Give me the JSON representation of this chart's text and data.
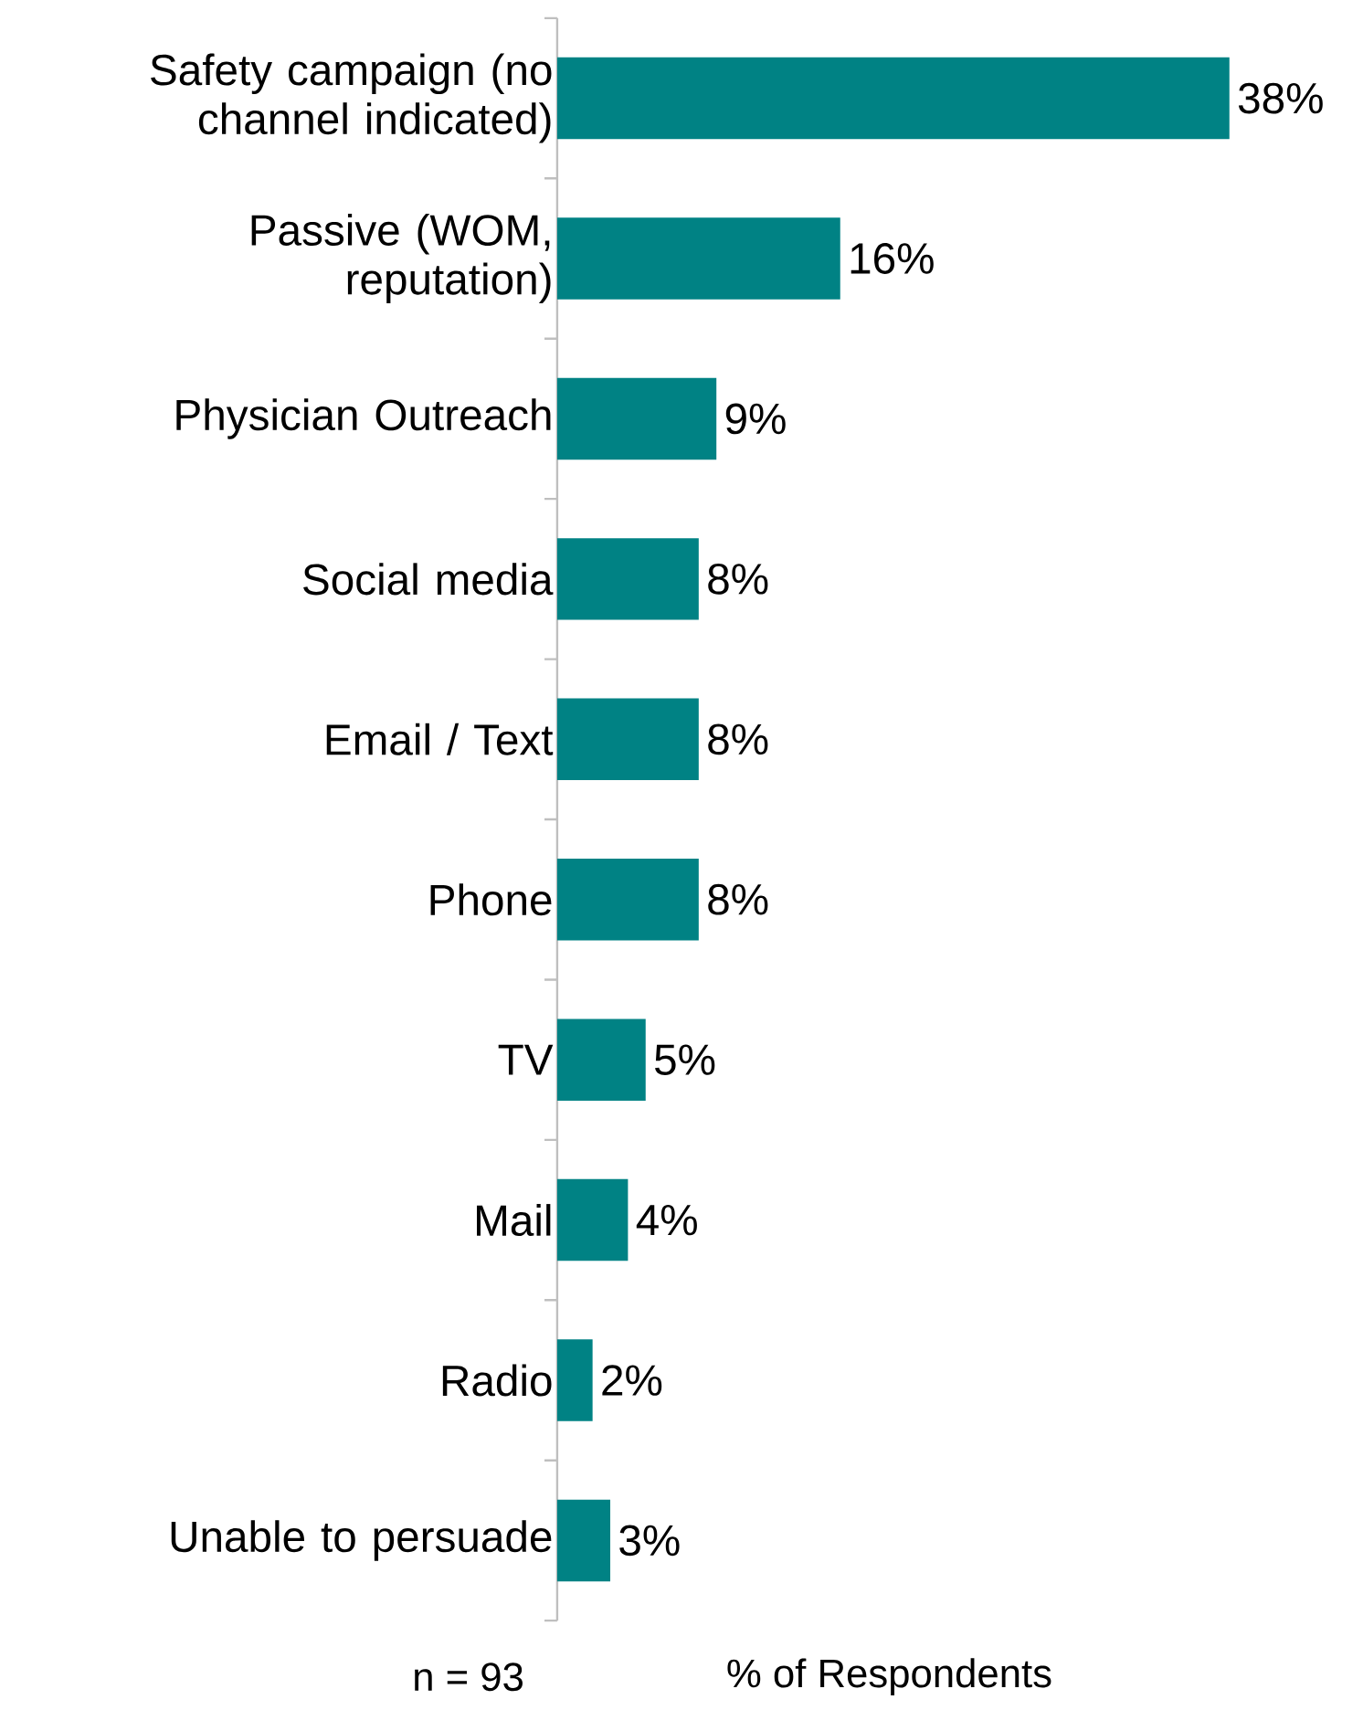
{
  "chart_data": {
    "type": "bar",
    "orientation": "horizontal",
    "xlabel": "% of Respondents",
    "categories": [
      "Safety campaign (no channel indicated)",
      "Passive (WOM, reputation)",
      "Physician Outreach",
      "Social media",
      "Email / Text",
      "Phone",
      "TV",
      "Mail",
      "Radio",
      "Unable to persuade"
    ],
    "values": [
      38,
      16,
      9,
      8,
      8,
      8,
      5,
      4,
      2,
      3
    ],
    "value_labels": [
      "38%",
      "16%",
      "9%",
      "8%",
      "8%",
      "8%",
      "5%",
      "4%",
      "2%",
      "3%"
    ],
    "color": "#008284",
    "annotations": [
      "n = 93"
    ]
  }
}
